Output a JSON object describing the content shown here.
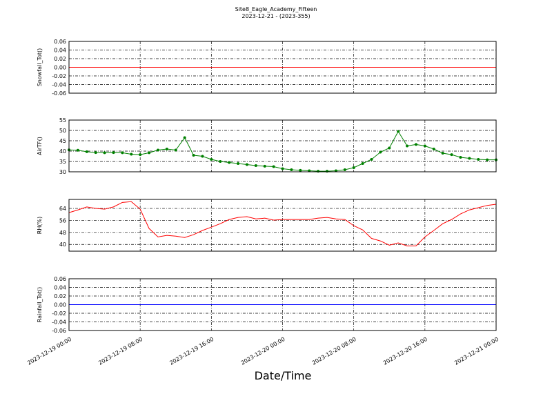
{
  "chart_data": [
    {
      "type": "line",
      "title": "Site8_Eagle_Academy_Fifteen",
      "subtitle": "2023-12-21 - (2023-355)",
      "ylabel": "Snowfall_Tot()",
      "x": [
        "2023-12-19 00:00",
        "2023-12-21 00:00"
      ],
      "series": [
        {
          "name": "Snowfall_Tot()",
          "color": "#ff0000",
          "values": [
            0,
            0
          ]
        }
      ],
      "xlim": [
        "2023-12-19 00:00",
        "2023-12-21 00:00"
      ],
      "xticks": [
        "2023-12-19 00:00",
        "2023-12-19 08:00",
        "2023-12-19 16:00",
        "2023-12-20 00:00",
        "2023-12-20 08:00",
        "2023-12-20 16:00",
        "2023-12-21 00:00"
      ],
      "ylim": [
        -0.06,
        0.06
      ],
      "yticks": [
        {
          "value": -0.06,
          "label": "-0.06"
        },
        {
          "value": -0.04,
          "label": "-0.04"
        },
        {
          "value": -0.02,
          "label": "-0.02"
        },
        {
          "value": 0,
          "label": "0.00"
        },
        {
          "value": 0.02,
          "label": "0.02"
        },
        {
          "value": 0.04,
          "label": "0.04"
        },
        {
          "value": 0.06,
          "label": "0.06"
        }
      ],
      "grid": true
    },
    {
      "type": "line",
      "ylabel": "AirTF()",
      "marker": "o",
      "x": [
        "2023-12-19 00:00",
        "2023-12-19 01:00",
        "2023-12-19 02:00",
        "2023-12-19 03:00",
        "2023-12-19 04:00",
        "2023-12-19 05:00",
        "2023-12-19 06:00",
        "2023-12-19 07:00",
        "2023-12-19 08:00",
        "2023-12-19 09:00",
        "2023-12-19 10:00",
        "2023-12-19 11:00",
        "2023-12-19 12:00",
        "2023-12-19 13:00",
        "2023-12-19 14:00",
        "2023-12-19 15:00",
        "2023-12-19 16:00",
        "2023-12-19 17:00",
        "2023-12-19 18:00",
        "2023-12-19 19:00",
        "2023-12-19 20:00",
        "2023-12-19 21:00",
        "2023-12-19 22:00",
        "2023-12-19 23:00",
        "2023-12-20 00:00",
        "2023-12-20 01:00",
        "2023-12-20 02:00",
        "2023-12-20 03:00",
        "2023-12-20 04:00",
        "2023-12-20 05:00",
        "2023-12-20 06:00",
        "2023-12-20 07:00",
        "2023-12-20 08:00",
        "2023-12-20 09:00",
        "2023-12-20 10:00",
        "2023-12-20 11:00",
        "2023-12-20 12:00",
        "2023-12-20 13:00",
        "2023-12-20 14:00",
        "2023-12-20 15:00",
        "2023-12-20 16:00",
        "2023-12-20 17:00",
        "2023-12-20 18:00",
        "2023-12-20 19:00",
        "2023-12-20 20:00",
        "2023-12-20 21:00",
        "2023-12-20 22:00",
        "2023-12-20 23:00",
        "2023-12-21 00:00"
      ],
      "series": [
        {
          "name": "AirTF()",
          "color": "#008000",
          "values": [
            40.6,
            40.4,
            39.7,
            39.3,
            39.2,
            39.3,
            39.2,
            38.5,
            38.3,
            39.2,
            40.5,
            41,
            40.5,
            46.5,
            38,
            37.5,
            36,
            35,
            34.5,
            34,
            33.5,
            33,
            32.7,
            32.5,
            31.5,
            31,
            30.7,
            30.5,
            30.3,
            30.3,
            30.5,
            31,
            32,
            34,
            36,
            39.5,
            41.5,
            49.5,
            42.5,
            43.2,
            42.5,
            41,
            39,
            38.3,
            37,
            36.5,
            36,
            35.8,
            35.8
          ]
        }
      ],
      "xlim": [
        "2023-12-19 00:00",
        "2023-12-21 00:00"
      ],
      "xticks": [
        "2023-12-19 00:00",
        "2023-12-19 08:00",
        "2023-12-19 16:00",
        "2023-12-20 00:00",
        "2023-12-20 08:00",
        "2023-12-20 16:00",
        "2023-12-21 00:00"
      ],
      "ylim": [
        30,
        55
      ],
      "yticks": [
        30,
        35,
        40,
        45,
        50,
        55
      ],
      "grid": true
    },
    {
      "type": "line",
      "ylabel": "RH(%)",
      "x": [
        "2023-12-19 00:00",
        "2023-12-19 01:00",
        "2023-12-19 02:00",
        "2023-12-19 03:00",
        "2023-12-19 04:00",
        "2023-12-19 05:00",
        "2023-12-19 06:00",
        "2023-12-19 07:00",
        "2023-12-19 08:00",
        "2023-12-19 09:00",
        "2023-12-19 10:00",
        "2023-12-19 11:00",
        "2023-12-19 12:00",
        "2023-12-19 13:00",
        "2023-12-19 14:00",
        "2023-12-19 15:00",
        "2023-12-19 16:00",
        "2023-12-19 17:00",
        "2023-12-19 18:00",
        "2023-12-19 19:00",
        "2023-12-19 20:00",
        "2023-12-19 21:00",
        "2023-12-19 22:00",
        "2023-12-19 23:00",
        "2023-12-20 00:00",
        "2023-12-20 01:00",
        "2023-12-20 02:00",
        "2023-12-20 03:00",
        "2023-12-20 04:00",
        "2023-12-20 05:00",
        "2023-12-20 06:00",
        "2023-12-20 07:00",
        "2023-12-20 08:00",
        "2023-12-20 09:00",
        "2023-12-20 10:00",
        "2023-12-20 11:00",
        "2023-12-20 12:00",
        "2023-12-20 13:00",
        "2023-12-20 14:00",
        "2023-12-20 15:00",
        "2023-12-20 16:00",
        "2023-12-20 17:00",
        "2023-12-20 18:00",
        "2023-12-20 19:00",
        "2023-12-20 20:00",
        "2023-12-20 21:00",
        "2023-12-20 22:00",
        "2023-12-20 23:00",
        "2023-12-21 00:00"
      ],
      "series": [
        {
          "name": "RH(%)",
          "color": "#ff0000",
          "values": [
            61.2,
            63,
            65,
            64,
            63.5,
            65,
            68,
            68.5,
            63.5,
            50.6,
            45,
            46,
            45.5,
            44.6,
            46.5,
            49.3,
            51.5,
            53.8,
            56.6,
            58,
            58.5,
            57,
            57.5,
            56.2,
            56.6,
            56.6,
            56.6,
            56.6,
            57.5,
            58,
            57,
            56.6,
            52.5,
            49.7,
            44,
            42.3,
            39.5,
            41,
            39,
            39,
            45,
            49.3,
            53.8,
            56.6,
            60.3,
            63,
            64.5,
            66,
            66.8
          ]
        }
      ],
      "xlim": [
        "2023-12-19 00:00",
        "2023-12-21 00:00"
      ],
      "xticks": [
        "2023-12-19 00:00",
        "2023-12-19 08:00",
        "2023-12-19 16:00",
        "2023-12-20 00:00",
        "2023-12-20 08:00",
        "2023-12-20 16:00",
        "2023-12-21 00:00"
      ],
      "ylim": [
        35.5,
        70
      ],
      "yticks": [
        40,
        48,
        56,
        64
      ],
      "grid": true
    },
    {
      "type": "line",
      "ylabel": "Rainfall_Tot()",
      "xlabel": "Date/Time",
      "x": [
        "2023-12-19 00:00",
        "2023-12-21 00:00"
      ],
      "series": [
        {
          "name": "Rainfall_Tot()",
          "color": "#0000ff",
          "values": [
            0,
            0
          ]
        }
      ],
      "xlim": [
        "2023-12-19 00:00",
        "2023-12-21 00:00"
      ],
      "xticks": [
        "2023-12-19 00:00",
        "2023-12-19 08:00",
        "2023-12-19 16:00",
        "2023-12-20 00:00",
        "2023-12-20 08:00",
        "2023-12-20 16:00",
        "2023-12-21 00:00"
      ],
      "ylim": [
        -0.06,
        0.06
      ],
      "yticks": [
        {
          "value": -0.06,
          "label": "-0.06"
        },
        {
          "value": -0.04,
          "label": "-0.04"
        },
        {
          "value": -0.02,
          "label": "-0.02"
        },
        {
          "value": 0,
          "label": "0.00"
        },
        {
          "value": 0.02,
          "label": "0.02"
        },
        {
          "value": 0.04,
          "label": "0.04"
        },
        {
          "value": 0.06,
          "label": "0.06"
        }
      ],
      "grid": true
    }
  ]
}
